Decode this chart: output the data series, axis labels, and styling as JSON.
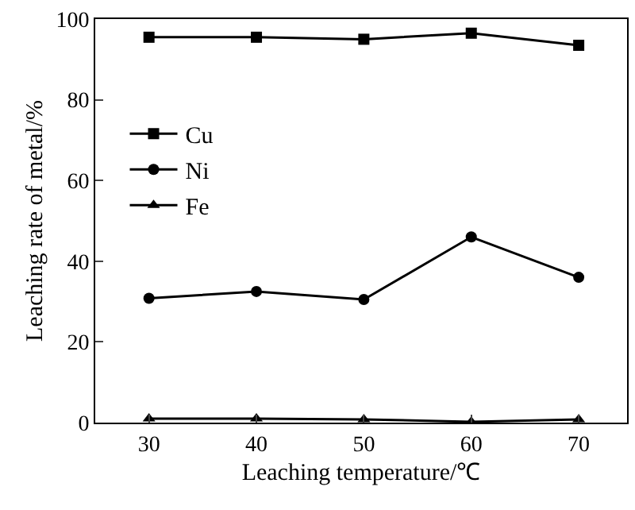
{
  "chart_data": {
    "type": "line",
    "xlabel": "Leaching temperature/℃",
    "ylabel": "Leaching rate of metal/%",
    "x": [
      30,
      40,
      50,
      60,
      70
    ],
    "series": [
      {
        "name": "Cu",
        "color": "#000000",
        "marker": "square",
        "values": [
          95.5,
          95.5,
          95,
          96.5,
          93.5
        ]
      },
      {
        "name": "Ni",
        "color": "#000000",
        "marker": "circle",
        "values": [
          30.8,
          32.5,
          30.5,
          46,
          36
        ]
      },
      {
        "name": "Fe",
        "color": "#000000",
        "marker": "triangle",
        "values": [
          1,
          1,
          0.8,
          0.2,
          0.8
        ]
      }
    ],
    "xlim": [
      25,
      74.5
    ],
    "xticks": [
      30,
      40,
      50,
      60,
      70
    ],
    "ylim": [
      0,
      100
    ],
    "yticks": [
      0,
      20,
      40,
      60,
      80,
      100
    ],
    "grid": false,
    "legend": "top left",
    "line_style": "solid"
  }
}
